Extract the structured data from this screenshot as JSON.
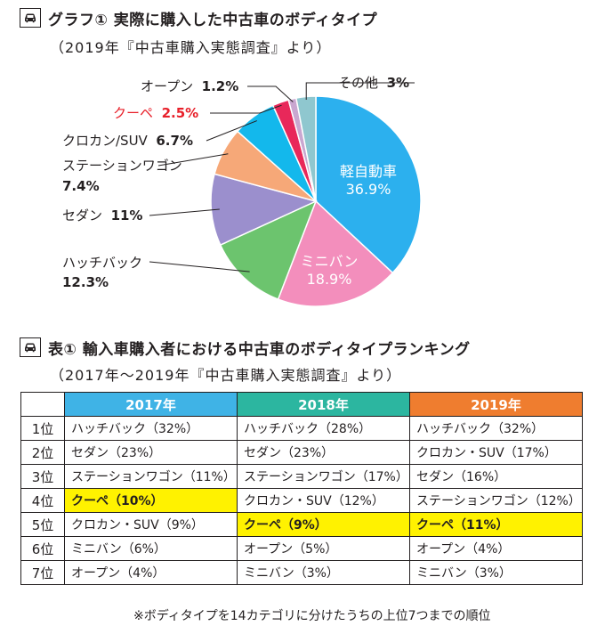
{
  "graph": {
    "heading": "グラフ① 実際に購入した中古車のボディタイプ",
    "source": "（2019年『中古車購入実態調査』より）"
  },
  "chart_data": {
    "type": "pie",
    "title": "実際に購入した中古車のボディタイプ",
    "slices": [
      {
        "name": "軽自動車",
        "value": 36.9,
        "label": "36.9%",
        "color": "#2cb0ee"
      },
      {
        "name": "ミニバン",
        "value": 18.9,
        "label": "18.9%",
        "color": "#f38ebc"
      },
      {
        "name": "ハッチバック",
        "value": 12.3,
        "label": "12.3%",
        "color": "#6cc46e"
      },
      {
        "name": "セダン",
        "value": 11,
        "label": "11%",
        "color": "#9b8fcd"
      },
      {
        "name": "ステーションワゴン",
        "value": 7.4,
        "label": "7.4%",
        "color": "#f6a878"
      },
      {
        "name": "クロカン/SUV",
        "value": 6.7,
        "label": "6.7%",
        "color": "#13b8ec"
      },
      {
        "name": "クーペ",
        "value": 2.5,
        "label": "2.5%",
        "color": "#e8285a"
      },
      {
        "name": "オープン",
        "value": 1.2,
        "label": "1.2%",
        "color": "#c9a7d0"
      },
      {
        "name": "その他",
        "value": 3,
        "label": "3%",
        "color": "#8fc7cf"
      }
    ]
  },
  "table": {
    "heading": "表① 輸入車購入者における中古車のボディタイプランキング",
    "source": "（2017年～2019年『中古車購入実態調査』より）",
    "columns": [
      "2017年",
      "2018年",
      "2019年"
    ],
    "rows": [
      {
        "rank": "1位",
        "cells": [
          "ハッチバック（32%）",
          "ハッチバック（28%）",
          "ハッチバック（32%）"
        ]
      },
      {
        "rank": "2位",
        "cells": [
          "セダン（23%）",
          "セダン（23%）",
          "クロカン・SUV（17%）"
        ]
      },
      {
        "rank": "3位",
        "cells": [
          "ステーションワゴン（11%）",
          "ステーションワゴン（17%）",
          "セダン（16%）"
        ]
      },
      {
        "rank": "4位",
        "cells": [
          "クーペ（10%）",
          "クロカン・SUV（12%）",
          "ステーションワゴン（12%）"
        ]
      },
      {
        "rank": "5位",
        "cells": [
          "クロカン・SUV（9%）",
          "クーペ（9%）",
          "クーペ（11%）"
        ]
      },
      {
        "rank": "6位",
        "cells": [
          "ミニバン（6%）",
          "オープン（5%）",
          "オープン（4%）"
        ]
      },
      {
        "rank": "7位",
        "cells": [
          "オープン（4%）",
          "ミニバン（3%）",
          "ミニバン（3%）"
        ]
      }
    ]
  },
  "footnote": "※ボディタイプを14カテゴリに分けたうちの上位7つまでの順位"
}
